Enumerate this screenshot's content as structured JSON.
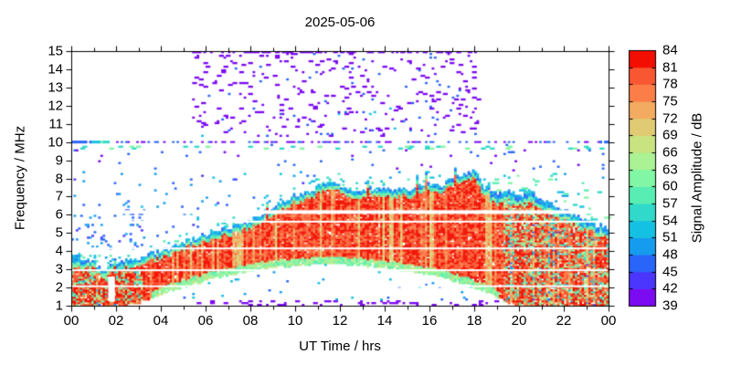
{
  "chart_data": {
    "type": "heatmap",
    "title": "2025-05-06",
    "xlabel": "UT Time / hrs",
    "ylabel": "Frequency / MHz",
    "colorbar_label": "Signal Amplitude / dB",
    "x_range_hours": [
      0,
      24
    ],
    "y_range_mhz": [
      1,
      15
    ],
    "x_tick_labels": [
      "00",
      "02",
      "04",
      "06",
      "08",
      "10",
      "12",
      "14",
      "16",
      "18",
      "20",
      "22",
      "00"
    ],
    "y_tick_labels": [
      "1",
      "2",
      "3",
      "4",
      "5",
      "6",
      "7",
      "8",
      "9",
      "10",
      "11",
      "12",
      "13",
      "14",
      "15"
    ],
    "colorbar_tick_labels": [
      "39",
      "42",
      "45",
      "48",
      "51",
      "54",
      "57",
      "60",
      "63",
      "66",
      "69",
      "72",
      "75",
      "78",
      "81",
      "84"
    ],
    "colorbar_range_db": [
      39,
      84
    ],
    "colorbar_colors": [
      "#7C0BF2",
      "#4A36FD",
      "#2A65FA",
      "#169CEF",
      "#14C1E3",
      "#31D9CB",
      "#58EDB2",
      "#81F6A4",
      "#AAF294",
      "#C9E381",
      "#E0CA73",
      "#F2AB60",
      "#FB7E48",
      "#F95732",
      "#F20E00"
    ],
    "echo_envelope": {
      "t_step_hours": 0.5,
      "top_mhz": [
        3.6,
        3.5,
        3.3,
        2.9,
        3.2,
        3.4,
        3.55,
        3.75,
        3.9,
        4.15,
        4.4,
        4.6,
        4.85,
        5.0,
        5.2,
        5.35,
        5.5,
        5.9,
        6.3,
        6.6,
        7.0,
        7.1,
        7.4,
        7.85,
        7.5,
        7.3,
        7.25,
        7.35,
        7.4,
        7.3,
        7.3,
        7.45,
        7.6,
        7.5,
        7.9,
        8.15,
        8.3,
        7.3,
        7.0,
        7.2,
        7.0,
        7.15,
        6.8,
        6.5,
        6.2,
        5.9,
        5.6,
        5.35,
        5.15
      ],
      "bottom_mhz": [
        1,
        1,
        1,
        1,
        1,
        1,
        1.1,
        1.35,
        1.6,
        1.85,
        2.05,
        2.2,
        2.4,
        2.55,
        2.7,
        2.8,
        2.9,
        3.0,
        3.1,
        3.15,
        3.2,
        3.25,
        3.3,
        3.3,
        3.3,
        3.25,
        3.2,
        3.1,
        3.05,
        3.0,
        2.9,
        2.8,
        2.7,
        2.55,
        2.4,
        2.2,
        2.0,
        1.8,
        1.45,
        1.1,
        1,
        1,
        1,
        1,
        1,
        1,
        1,
        1,
        1
      ]
    },
    "interference_gap_lines": [
      {
        "f_mhz": 2.07,
        "px": 2
      },
      {
        "f_mhz": 2.95,
        "px": 2
      },
      {
        "f_mhz": 4.15,
        "px": 2
      },
      {
        "f_mhz": 5.62,
        "px": 2
      },
      {
        "f_mhz": 6.15,
        "px": 4
      }
    ],
    "rfi_line": {
      "f_mhz": 10.0,
      "solid_until_hour": 1.7
    },
    "secondary_rfi_row_mhz": 9.65,
    "sporadic_noise_region": {
      "t_hours": [
        5.4,
        18.2
      ],
      "f_mhz": [
        10.25,
        15.0
      ]
    },
    "bottom_noise_dashes": {
      "t_hours": [
        5.0,
        19.5
      ],
      "f_mhz": 1.05
    },
    "data_gap": {
      "t_hours": [
        1.65,
        1.95
      ],
      "f_mhz": [
        1.25,
        2.6
      ]
    }
  }
}
